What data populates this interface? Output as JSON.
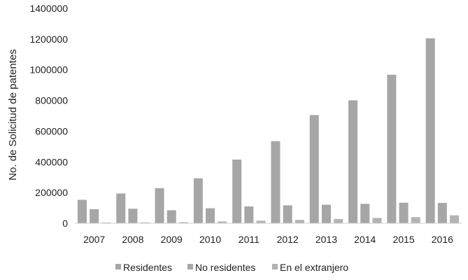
{
  "chart_data": {
    "type": "bar",
    "title": "",
    "xlabel": "",
    "ylabel": "No. de Solicitud de patentes",
    "categories": [
      "2007",
      "2008",
      "2009",
      "2010",
      "2011",
      "2012",
      "2013",
      "2014",
      "2015",
      "2016"
    ],
    "series": [
      {
        "name": "Residentes",
        "color": "#a6a6a6",
        "values": [
          153000,
          194000,
          229000,
          293000,
          415000,
          535000,
          705000,
          801000,
          968000,
          1205000
        ]
      },
      {
        "name": "No residentes",
        "color": "#a6a6a6",
        "values": [
          92000,
          95000,
          85000,
          98000,
          110000,
          117000,
          121000,
          127000,
          134000,
          133000
        ]
      },
      {
        "name": "En el extranjero",
        "color": "#b3b3b3",
        "values": [
          5000,
          6000,
          7000,
          12000,
          17000,
          22000,
          28000,
          35000,
          40000,
          52000
        ]
      }
    ],
    "yticks": [
      "0",
      "200000",
      "400000",
      "600000",
      "800000",
      "1000000",
      "1200000",
      "1400000"
    ],
    "ylim": [
      0,
      1400000
    ],
    "grid": false,
    "legend_position": "bottom"
  }
}
